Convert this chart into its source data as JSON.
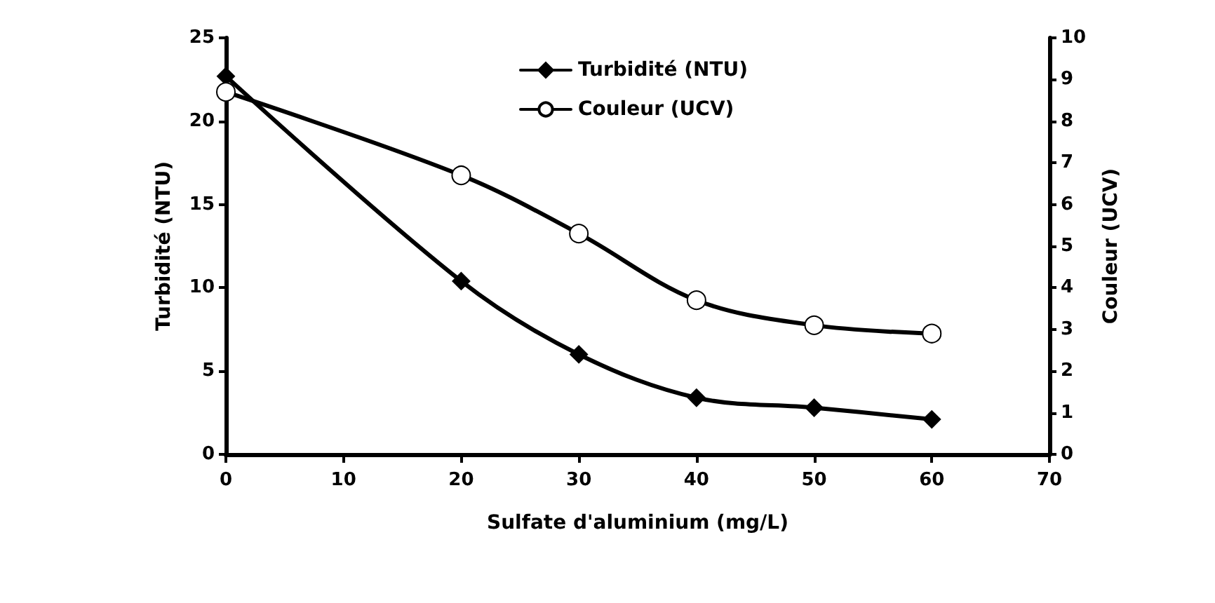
{
  "chart_data": {
    "type": "line",
    "xlabel": "Sulfate d'aluminium (mg/L)",
    "ylabel": "Turbidité (NTU)",
    "y2label": "Couleur (UCV)",
    "x": [
      0,
      20,
      30,
      40,
      50,
      60
    ],
    "series": [
      {
        "name": "Turbidité (NTU)",
        "color": "#000000",
        "marker": "diamond",
        "values": [
          22.7,
          10.4,
          6.0,
          3.4,
          2.8,
          2.1
        ]
      },
      {
        "name": "Couleur (UCV)",
        "color": "#000000",
        "marker": "circle",
        "axis": "y2",
        "values": [
          8.7,
          6.7,
          5.3,
          3.7,
          3.1,
          2.9
        ]
      }
    ],
    "xlim": [
      0,
      70
    ],
    "xticks": [
      0,
      10,
      20,
      30,
      40,
      50,
      60,
      70
    ],
    "ylim": [
      0,
      25
    ],
    "yticks": [
      0,
      5,
      10,
      15,
      20,
      25
    ],
    "y2lim": [
      0,
      10
    ],
    "y2ticks": [
      0,
      1,
      2,
      3,
      4,
      5,
      6,
      7,
      8,
      9,
      10
    ],
    "grid": false,
    "legend": "top",
    "line_style": "solid"
  }
}
